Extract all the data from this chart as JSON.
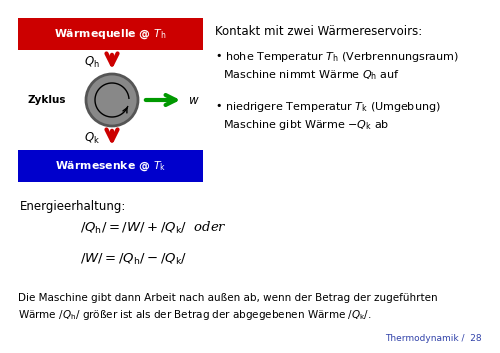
{
  "bg_color": "#ffffff",
  "red_box_color": "#cc0000",
  "blue_box_color": "#0000cc",
  "box_text_color": "#ffffff",
  "arrow_red": "#cc0000",
  "arrow_green": "#009900",
  "circle_face": "#888888",
  "circle_edge": "#555555",
  "text_color": "#000000",
  "footer_color": "#3344aa",
  "waermequelle_text": "Wärmequelle @ $T_\\mathrm{h}$",
  "waermesenke_text": "Wärmesenke @ $T_\\mathrm{k}$",
  "zyklus_text": "Zyklus",
  "w_label": "$w$",
  "qh_label": "$Q_\\mathrm{h}$",
  "qk_label": "$Q_\\mathrm{k}$",
  "header": "Kontakt mit zwei Wärmereservoirs:",
  "bullet1a": "hohe Temperatur $T_\\mathrm{h}$ (Verbrennungsraum)",
  "bullet1b": "Maschine nimmt Wärme $Q_\\mathrm{h}$ auf",
  "bullet2a": "niedrigere Temperatur $T_\\mathrm{k}$ (Umgebung)",
  "bullet2b": "Maschine gibt Wärme $-Q_\\mathrm{k}$ ab",
  "energy_label": "Energieerhaltung:",
  "formula1": "$/Q_\\mathrm{h}/  = /W/ + /Q_\\mathrm{k}/$  oder",
  "formula2": "$/W/  = /Q_\\mathrm{h}/ - /Q_\\mathrm{k}/$",
  "bottom_text1": "Die Maschine gibt dann Arbeit nach außen ab, wenn der Betrag der zugeführten",
  "bottom_text2": "Wärme $/Q_\\mathrm{h}/$ größer ist als der Betrag der abgegebenen Wärme $/Q_\\mathrm{k}/$.",
  "footer_text": "Thermodynamik /  28"
}
